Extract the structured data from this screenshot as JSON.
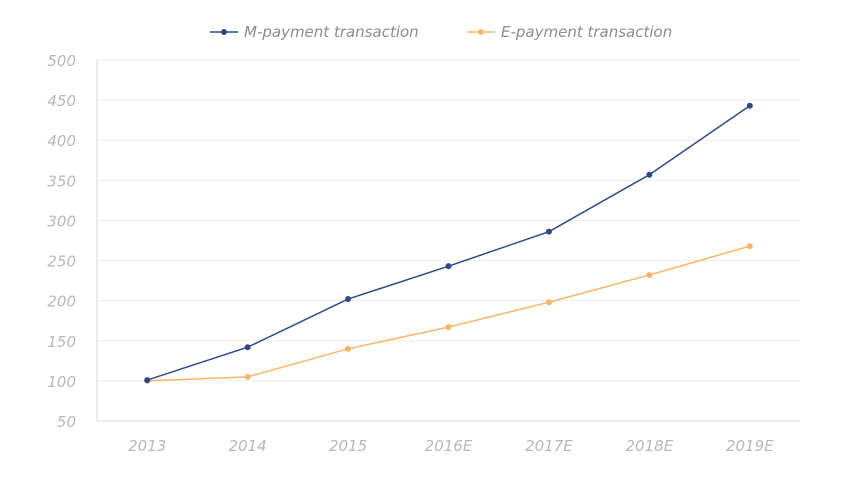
{
  "chart_data": {
    "type": "line",
    "categories": [
      "2013",
      "2014",
      "2015",
      "2016E",
      "2017E",
      "2018E",
      "2019E"
    ],
    "series": [
      {
        "name": "M-payment transaction",
        "color": "#2e4a84",
        "values": [
          101,
          142,
          202,
          243,
          286,
          357,
          443
        ]
      },
      {
        "name": "E-payment transaction",
        "color": "#f9b56a",
        "values": [
          100,
          105,
          140,
          167,
          198,
          232,
          268
        ]
      }
    ],
    "ylim": [
      50,
      500
    ],
    "yticks": [
      50,
      100,
      150,
      200,
      250,
      300,
      350,
      400,
      450,
      500
    ],
    "grid": true,
    "legend_position": "top"
  }
}
